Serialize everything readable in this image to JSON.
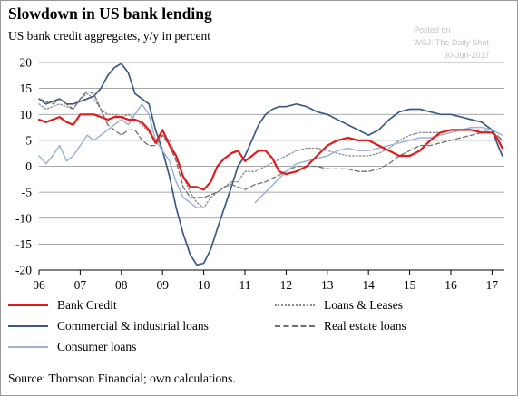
{
  "title": "Slowdown in US bank lending",
  "subtitle": "US bank credit aggregates, y/y in percent",
  "watermark": {
    "line1": "Posted on",
    "line2": "WSJ: The Daily Shot",
    "line3": "30-Jun-2017"
  },
  "source": "Source: Thomson Financial; own calculations.",
  "colors": {
    "bank_credit": "#e01b1b",
    "commercial_industrial": "#3d5a85",
    "consumer": "#9db3d4",
    "loans_leases": "#8c8c8c",
    "real_estate": "#6f6f6f"
  },
  "chart_data": {
    "type": "line",
    "ylim": [
      -20,
      20
    ],
    "yticks": [
      20,
      15,
      10,
      5,
      0,
      -5,
      -10,
      -15,
      -20
    ],
    "xlim": [
      2006.0,
      2017.3
    ],
    "xticks": [
      "06",
      "07",
      "08",
      "09",
      "10",
      "11",
      "12",
      "13",
      "14",
      "15",
      "16",
      "17"
    ],
    "grid": true,
    "legend": "bottom",
    "series": [
      {
        "name": "Commercial & industrial loans",
        "key": "commercial_industrial",
        "style": "solid",
        "x": [
          2006.0,
          2006.17,
          2006.33,
          2006.5,
          2006.67,
          2006.83,
          2007.0,
          2007.17,
          2007.33,
          2007.5,
          2007.67,
          2007.83,
          2008.0,
          2008.17,
          2008.33,
          2008.5,
          2008.67,
          2008.83,
          2009.0,
          2009.17,
          2009.33,
          2009.5,
          2009.67,
          2009.83,
          2010.0,
          2010.17,
          2010.33,
          2010.5,
          2010.67,
          2010.83,
          2011.0,
          2011.17,
          2011.33,
          2011.5,
          2011.67,
          2011.83,
          2012.0,
          2012.25,
          2012.5,
          2012.75,
          2013.0,
          2013.25,
          2013.5,
          2013.75,
          2014.0,
          2014.25,
          2014.5,
          2014.75,
          2015.0,
          2015.25,
          2015.5,
          2015.75,
          2016.0,
          2016.25,
          2016.5,
          2016.75,
          2017.0,
          2017.12,
          2017.25
        ],
        "y": [
          13,
          12,
          12.5,
          13,
          12,
          12,
          12.5,
          13,
          13.5,
          15,
          17.5,
          19,
          19.8,
          18,
          14,
          13,
          12,
          7,
          3,
          -2,
          -8,
          -13,
          -17,
          -19,
          -18.7,
          -16,
          -12,
          -8,
          -4,
          0,
          2,
          5,
          8,
          10,
          11,
          11.5,
          11.5,
          12,
          11.5,
          10.5,
          10,
          9,
          8,
          7,
          6,
          7,
          9,
          10.5,
          11,
          11,
          10.5,
          10,
          10,
          9.5,
          9,
          8.5,
          7,
          4.5,
          2
        ]
      },
      {
        "name": "Loans & Leases",
        "key": "loans_leases",
        "style": "dotted",
        "x": [
          2006.0,
          2006.17,
          2006.33,
          2006.5,
          2006.67,
          2006.83,
          2007.0,
          2007.17,
          2007.33,
          2007.5,
          2007.67,
          2007.83,
          2008.0,
          2008.17,
          2008.33,
          2008.5,
          2008.67,
          2008.83,
          2009.0,
          2009.17,
          2009.33,
          2009.5,
          2009.67,
          2009.83,
          2010.0,
          2010.17,
          2010.33,
          2010.5,
          2010.67,
          2010.83,
          2011.0,
          2011.25,
          2011.5,
          2011.75,
          2012.0,
          2012.25,
          2012.5,
          2012.75,
          2013.0,
          2013.25,
          2013.5,
          2013.75,
          2014.0,
          2014.25,
          2014.5,
          2014.75,
          2015.0,
          2015.25,
          2015.5,
          2015.75,
          2016.0,
          2016.25,
          2016.5,
          2016.75,
          2017.0,
          2017.12,
          2017.25
        ],
        "y": [
          12,
          11,
          11.5,
          12,
          11.5,
          11,
          13,
          14,
          13,
          11,
          10,
          10,
          9.5,
          10,
          9,
          8,
          6.5,
          5,
          6,
          5,
          2,
          -2,
          -5,
          -7,
          -8,
          -6,
          -5,
          -4,
          -3,
          -3,
          -1,
          -1,
          0,
          1,
          2,
          3,
          3.5,
          3.5,
          3,
          2.5,
          2,
          2,
          2,
          2.5,
          3.5,
          5,
          6,
          6.5,
          6.5,
          6.5,
          7,
          7,
          7,
          7,
          6.5,
          6,
          5
        ]
      },
      {
        "name": "Real estate loans",
        "key": "real_estate",
        "style": "dashed",
        "x": [
          2006.0,
          2006.17,
          2006.33,
          2006.5,
          2006.67,
          2006.83,
          2007.0,
          2007.17,
          2007.33,
          2007.5,
          2007.67,
          2007.83,
          2008.0,
          2008.17,
          2008.33,
          2008.5,
          2008.67,
          2008.83,
          2009.0,
          2009.17,
          2009.33,
          2009.5,
          2009.67,
          2009.83,
          2010.0,
          2010.17,
          2010.33,
          2010.5,
          2010.67,
          2010.83,
          2011.0,
          2011.25,
          2011.5,
          2011.75,
          2012.0,
          2012.25,
          2012.5,
          2012.75,
          2013.0,
          2013.25,
          2013.5,
          2013.75,
          2014.0,
          2014.25,
          2014.5,
          2014.75,
          2015.0,
          2015.25,
          2015.5,
          2015.75,
          2016.0,
          2016.25,
          2016.5,
          2016.75,
          2017.0,
          2017.12,
          2017.25
        ],
        "y": [
          13,
          12.5,
          12,
          13,
          12,
          11,
          13,
          14.5,
          14,
          11,
          8,
          7,
          6,
          7,
          7,
          5,
          4,
          4,
          6,
          4,
          1,
          -4,
          -6,
          -6,
          -6,
          -5.5,
          -5,
          -4,
          -3.5,
          -4,
          -4.5,
          -3.5,
          -3,
          -2,
          -1,
          0,
          0,
          0,
          -0.5,
          -0.5,
          -0.5,
          -1,
          -1,
          -0.5,
          0.5,
          2,
          3,
          4,
          4,
          4.5,
          5,
          5.5,
          6,
          6.5,
          6.5,
          6,
          5
        ]
      },
      {
        "name": "Consumer loans",
        "key": "consumer",
        "style": "solid",
        "x": [
          2006.0,
          2006.17,
          2006.33,
          2006.5,
          2006.67,
          2006.83,
          2007.0,
          2007.17,
          2007.33,
          2007.5,
          2007.67,
          2007.83,
          2008.0,
          2008.17,
          2008.33,
          2008.5,
          2008.67,
          2008.83,
          2009.0,
          2009.17,
          2009.33,
          2009.5,
          2009.67,
          2009.83,
          2010.0,
          null,
          2011.25,
          2011.5,
          2011.75,
          2012.0,
          2012.25,
          2012.5,
          2012.75,
          2013.0,
          2013.25,
          2013.5,
          2013.75,
          2014.0,
          2014.25,
          2014.5,
          2014.75,
          2015.0,
          2015.25,
          2015.5,
          2015.75,
          2016.0,
          2016.25,
          2016.5,
          2016.75,
          2017.0,
          2017.12,
          2017.25
        ],
        "y": [
          2,
          0.5,
          2,
          4,
          1,
          2,
          4,
          6,
          5,
          6,
          7,
          8,
          9,
          8,
          10,
          12,
          10,
          5,
          3,
          1,
          -3,
          -6,
          -7,
          -8,
          -8,
          null,
          -7,
          -5,
          -3,
          -1,
          0.5,
          1,
          1.5,
          2,
          3,
          3.5,
          3,
          3,
          3.5,
          4,
          4.5,
          5,
          5.5,
          5.5,
          6,
          6.5,
          7,
          7.5,
          7.5,
          7,
          6.5,
          6
        ]
      },
      {
        "name": "Bank Credit",
        "key": "bank_credit",
        "style": "solid",
        "x": [
          2006.0,
          2006.17,
          2006.33,
          2006.5,
          2006.67,
          2006.83,
          2007.0,
          2007.17,
          2007.33,
          2007.5,
          2007.67,
          2007.83,
          2008.0,
          2008.17,
          2008.33,
          2008.5,
          2008.67,
          2008.83,
          2009.0,
          2009.17,
          2009.33,
          2009.5,
          2009.67,
          2009.83,
          2010.0,
          2010.17,
          2010.33,
          2010.5,
          2010.67,
          2010.83,
          2011.0,
          2011.17,
          2011.33,
          2011.5,
          2011.67,
          2011.83,
          2012.0,
          2012.25,
          2012.5,
          2012.75,
          2013.0,
          2013.25,
          2013.5,
          2013.75,
          2014.0,
          2014.25,
          2014.5,
          2014.75,
          2015.0,
          2015.25,
          2015.5,
          2015.75,
          2016.0,
          2016.25,
          2016.5,
          2016.75,
          2017.0,
          2017.12,
          2017.25
        ],
        "y": [
          9,
          8.5,
          9,
          9.5,
          8.5,
          8,
          10,
          10,
          10,
          9.5,
          9,
          9.5,
          9.5,
          9,
          9,
          8.5,
          7,
          4.5,
          7,
          4,
          2,
          -2,
          -4,
          -4,
          -4.5,
          -3,
          0,
          1.5,
          2.5,
          3,
          1,
          2,
          3,
          3,
          1.5,
          -1,
          -1.5,
          -1,
          0,
          2,
          4,
          5,
          5.5,
          5,
          5,
          4,
          3,
          2,
          2,
          3,
          5,
          6.5,
          7,
          7,
          7,
          6.5,
          6.5,
          5.5,
          3.5
        ]
      }
    ],
    "legend_labels": {
      "bank_credit": "Bank Credit",
      "loans_leases": "Loans & Leases",
      "commercial_industrial": "Commercial & industrial loans",
      "real_estate": "Real estate loans",
      "consumer": "Consumer loans"
    }
  }
}
